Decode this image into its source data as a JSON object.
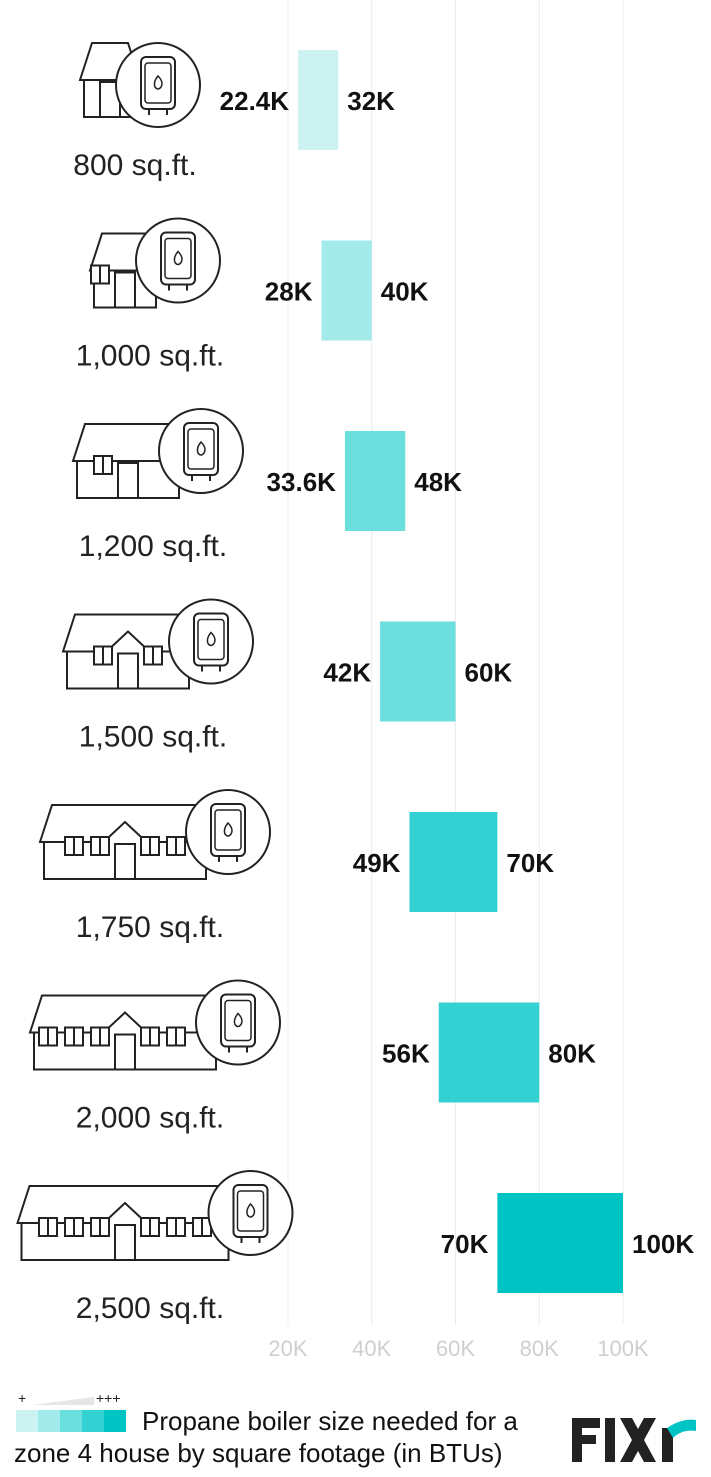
{
  "chart_data": {
    "type": "bar",
    "orientation": "horizontal-range",
    "categories": [
      "800 sq.ft.",
      "1,000 sq.ft.",
      "1,200 sq.ft.",
      "1,500 sq.ft.",
      "1,750 sq.ft.",
      "2,000 sq.ft.",
      "2,500 sq.ft."
    ],
    "low": [
      22400,
      28000,
      33600,
      42000,
      49000,
      56000,
      70000
    ],
    "high": [
      32000,
      40000,
      48000,
      60000,
      70000,
      80000,
      100000
    ],
    "low_labels": [
      "22.4K",
      "28K",
      "33.6K",
      "42K",
      "49K",
      "56K",
      "70K"
    ],
    "high_labels": [
      "32K",
      "40K",
      "48K",
      "60K",
      "70K",
      "80K",
      "100K"
    ],
    "colors": [
      "#ccf2f2",
      "#a3ebeb",
      "#6bdede",
      "#6bdede",
      "#33d1d1",
      "#33d1d1",
      "#00c4c4"
    ],
    "xticks": [
      "20K",
      "40K",
      "60K",
      "80K",
      "100K"
    ],
    "xtick_values": [
      20000,
      40000,
      60000,
      80000,
      100000
    ],
    "xlim": [
      20000,
      100000
    ],
    "grid": true,
    "legend": "bottom-left"
  },
  "legend": {
    "plus_low": "+",
    "plus_high": "+++",
    "swatch_colors": [
      "#ccf2f2",
      "#a3ebeb",
      "#6bdede",
      "#33d1d1",
      "#00c4c4"
    ]
  },
  "caption": {
    "line1": "Propane boiler size needed for a",
    "line2": "zone 4 house by square footage (in BTUs)"
  },
  "logo": {
    "text": "FIXR",
    "color_main": "#222222",
    "color_accent": "#00c4c4"
  }
}
